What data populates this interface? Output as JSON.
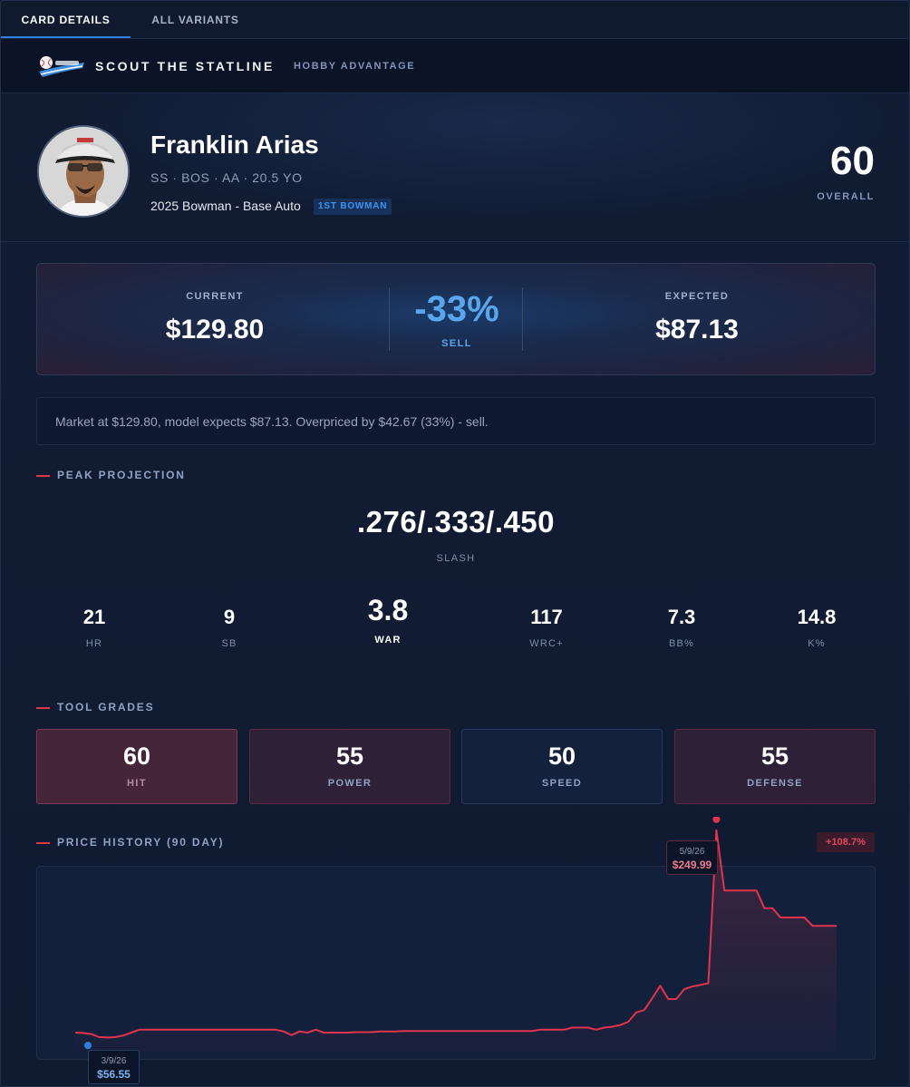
{
  "tabs": [
    {
      "label": "CARD DETAILS",
      "active": true
    },
    {
      "label": "ALL VARIANTS",
      "active": false
    }
  ],
  "brand": {
    "title": "SCOUT THE STATLINE",
    "subtitle": "HOBBY ADVANTAGE",
    "logo_icon": "baseball-swoosh-logo"
  },
  "player": {
    "name": "Franklin Arias",
    "meta": "SS · BOS · AA · 20.5 YO",
    "card": "2025 Bowman - Base Auto",
    "badge": "1ST BOWMAN",
    "overall_value": "60",
    "overall_label": "OVERALL"
  },
  "pricing": {
    "current_label": "CURRENT",
    "current_value": "$129.80",
    "diff_value": "-33%",
    "diff_label": "SELL",
    "expected_label": "EXPECTED",
    "expected_value": "$87.13",
    "summary": "Market at $129.80, model expects $87.13. Overpriced by $42.67 (33%) - sell."
  },
  "projection": {
    "heading": "PEAK PROJECTION",
    "slash_value": ".276/.333/.450",
    "slash_label": "SLASH",
    "stats": [
      {
        "value": "21",
        "label": "HR"
      },
      {
        "value": "9",
        "label": "SB"
      },
      {
        "value": "3.8",
        "label": "WAR"
      },
      {
        "value": "117",
        "label": "WRC+"
      },
      {
        "value": "7.3",
        "label": "BB%"
      },
      {
        "value": "14.8",
        "label": "K%"
      }
    ]
  },
  "tools": {
    "heading": "TOOL GRADES",
    "items": [
      {
        "value": "60",
        "label": "HIT"
      },
      {
        "value": "55",
        "label": "POWER"
      },
      {
        "value": "50",
        "label": "SPEED"
      },
      {
        "value": "55",
        "label": "DEFENSE"
      }
    ]
  },
  "history": {
    "heading": "PRICE HISTORY (90 DAY)",
    "change_badge": "+108.7%",
    "high": {
      "date": "5/9/26",
      "price": "$249.99"
    },
    "low": {
      "date": "3/9/26",
      "price": "$56.55"
    }
  },
  "colors": {
    "accent_blue": "#2f7fe0",
    "line_red": "#e0344e",
    "low_dot": "#2f7fe0"
  },
  "chart_data": {
    "type": "line",
    "title": "",
    "xlabel": "",
    "ylabel": "",
    "x_range": [
      "3/9/26",
      "6/6/26"
    ],
    "ylim": [
      44.1,
      262.4
    ],
    "grid": false,
    "series": [
      {
        "values": [
          62.6,
          62.2,
          61.2,
          58.4,
          58.0,
          58.4,
          59.9,
          62.6,
          65.3,
          65.3,
          65.3,
          65.3,
          65.3,
          65.3,
          65.3,
          65.3,
          65.3,
          65.3,
          65.3,
          65.3,
          65.3,
          65.3,
          65.3,
          65.3,
          65.3,
          65.3,
          63.7,
          60.2,
          63.7,
          62.6,
          65.3,
          62.6,
          62.6,
          62.6,
          62.6,
          63.0,
          63.0,
          63.0,
          63.7,
          63.7,
          63.7,
          64.1,
          64.1,
          64.1,
          64.1,
          64.1,
          64.1,
          64.1,
          64.1,
          64.1,
          64.1,
          64.1,
          64.1,
          64.1,
          64.1,
          64.1,
          64.1,
          64.1,
          65.3,
          65.3,
          65.3,
          65.3,
          67.2,
          67.2,
          67.2,
          65.3,
          67.2,
          68.0,
          69.5,
          72.6,
          81.2,
          83.5,
          94.4,
          106.0,
          93.6,
          93.6,
          102.9,
          105.2,
          106.7,
          108.3,
          249.99,
          194.2,
          194.2,
          194.2,
          194.2,
          194.2,
          177.8,
          177.8,
          169.2,
          169.2,
          169.2,
          169.2,
          161.4,
          161.4,
          161.4,
          161.4
        ]
      }
    ],
    "annotations": [
      {
        "x": "5/9/26",
        "y": 249.99,
        "label": "$249.99"
      },
      {
        "x": "3/9/26",
        "y": 56.55,
        "label": "$56.55"
      }
    ]
  }
}
